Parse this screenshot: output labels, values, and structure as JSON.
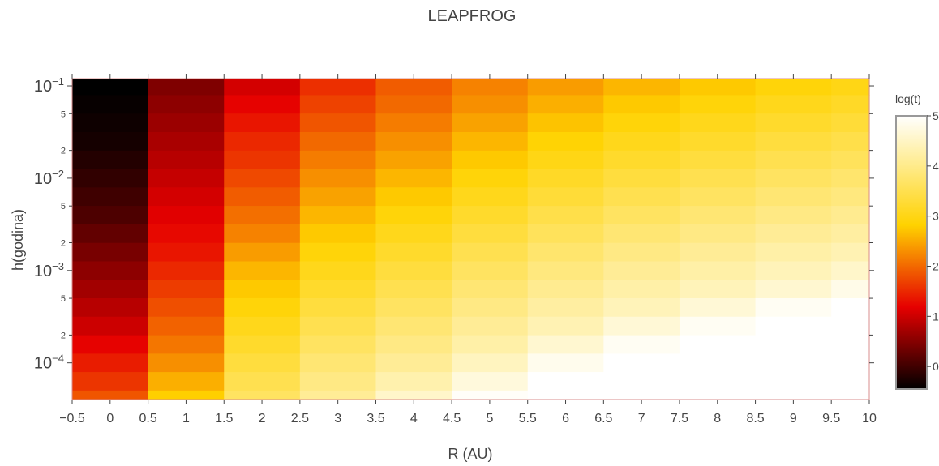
{
  "chart_data": {
    "type": "heatmap",
    "title": "LEAPFROG",
    "xlabel": "R (AU)",
    "ylabel": "h(godina)",
    "colorbar_title": "log(t)",
    "colorscale": "hot",
    "y_scale": "log",
    "x_tick_labels": [
      "−0.5",
      "0",
      "0.5",
      "1",
      "1.5",
      "2",
      "2.5",
      "3",
      "3.5",
      "4",
      "4.5",
      "5",
      "5.5",
      "6",
      "6.5",
      "7",
      "7.5",
      "8",
      "8.5",
      "9",
      "9.5",
      "10"
    ],
    "x_tick_values": [
      -0.5,
      0,
      0.5,
      1,
      1.5,
      2,
      2.5,
      3,
      3.5,
      4,
      4.5,
      5,
      5.5,
      6,
      6.5,
      7,
      7.5,
      8,
      8.5,
      9,
      9.5,
      10
    ],
    "y_major_ticks": [
      {
        "value": 0.1,
        "base": "10",
        "exp": "−1"
      },
      {
        "value": 0.01,
        "base": "10",
        "exp": "−2"
      },
      {
        "value": 0.001,
        "base": "10",
        "exp": "−3"
      },
      {
        "value": 0.0001,
        "base": "10",
        "exp": "−4"
      }
    ],
    "y_minor_ticks": [
      {
        "value": 0.05,
        "label": "5"
      },
      {
        "value": 0.02,
        "label": "2"
      },
      {
        "value": 0.005,
        "label": "5"
      },
      {
        "value": 0.002,
        "label": "2"
      },
      {
        "value": 0.0005,
        "label": "5"
      },
      {
        "value": 0.0002,
        "label": "2"
      }
    ],
    "colorbar_ticks": [
      {
        "value": 0,
        "label": "0"
      },
      {
        "value": 1,
        "label": "1"
      },
      {
        "value": 2,
        "label": "2"
      },
      {
        "value": 3,
        "label": "3"
      },
      {
        "value": 4,
        "label": "4"
      },
      {
        "value": 5,
        "label": "5"
      }
    ],
    "zlim": [
      -0.45,
      5
    ],
    "x_range": [
      -0.5,
      10
    ],
    "y_range": [
      4e-05,
      0.12
    ],
    "x": [
      0,
      1,
      2,
      3,
      4,
      5,
      6,
      7,
      8,
      9,
      10
    ],
    "y": [
      0.1,
      0.0631,
      0.0398,
      0.0251,
      0.0158,
      0.01,
      0.00631,
      0.00398,
      0.00251,
      0.00158,
      0.001,
      0.000631,
      0.000398,
      0.000251,
      0.000158,
      0.0001,
      6.31e-05,
      3.98e-05
    ],
    "z": [
      [
        -0.45,
        0.45,
        1.05,
        1.55,
        1.9,
        2.2,
        2.4,
        2.6,
        2.75,
        2.9,
        3.0
      ],
      [
        -0.4,
        0.55,
        1.2,
        1.7,
        2.0,
        2.3,
        2.55,
        2.75,
        2.9,
        3.05,
        3.15
      ],
      [
        -0.35,
        0.65,
        1.35,
        1.85,
        2.15,
        2.45,
        2.7,
        2.9,
        3.05,
        3.2,
        3.3
      ],
      [
        -0.3,
        0.75,
        1.5,
        2.0,
        2.3,
        2.6,
        2.85,
        3.05,
        3.2,
        3.35,
        3.45
      ],
      [
        -0.2,
        0.85,
        1.6,
        2.15,
        2.45,
        2.75,
        3.0,
        3.2,
        3.35,
        3.5,
        3.6
      ],
      [
        -0.1,
        0.95,
        1.75,
        2.3,
        2.6,
        2.9,
        3.15,
        3.35,
        3.5,
        3.65,
        3.75
      ],
      [
        0.0,
        1.05,
        1.9,
        2.45,
        2.75,
        3.05,
        3.3,
        3.5,
        3.65,
        3.8,
        3.9
      ],
      [
        0.1,
        1.15,
        2.05,
        2.6,
        2.9,
        3.2,
        3.45,
        3.65,
        3.8,
        3.95,
        4.05
      ],
      [
        0.25,
        1.25,
        2.2,
        2.75,
        3.05,
        3.35,
        3.6,
        3.8,
        3.95,
        4.1,
        4.2
      ],
      [
        0.4,
        1.35,
        2.4,
        2.9,
        3.2,
        3.5,
        3.75,
        3.95,
        4.1,
        4.25,
        4.35
      ],
      [
        0.55,
        1.5,
        2.6,
        3.05,
        3.35,
        3.65,
        3.9,
        4.1,
        4.25,
        4.4,
        4.55
      ],
      [
        0.7,
        1.65,
        2.75,
        3.2,
        3.5,
        3.8,
        4.05,
        4.25,
        4.4,
        4.6,
        4.8
      ],
      [
        0.85,
        1.8,
        2.9,
        3.35,
        3.65,
        3.95,
        4.2,
        4.4,
        4.65,
        4.9,
        5.0
      ],
      [
        1.0,
        1.95,
        3.05,
        3.5,
        3.8,
        4.1,
        4.35,
        4.65,
        4.9,
        5.0,
        5.0
      ],
      [
        1.2,
        2.1,
        3.2,
        3.65,
        3.95,
        4.25,
        4.6,
        4.9,
        5.0,
        5.0,
        5.0
      ],
      [
        1.4,
        2.3,
        3.35,
        3.8,
        4.1,
        4.45,
        4.85,
        5.0,
        5.0,
        5.0,
        5.0
      ],
      [
        1.6,
        2.55,
        3.5,
        3.95,
        4.3,
        4.7,
        5.0,
        5.0,
        5.0,
        5.0,
        5.0
      ],
      [
        1.85,
        2.8,
        3.65,
        4.1,
        4.55,
        4.95,
        5.0,
        5.0,
        5.0,
        5.0,
        5.0
      ]
    ]
  }
}
